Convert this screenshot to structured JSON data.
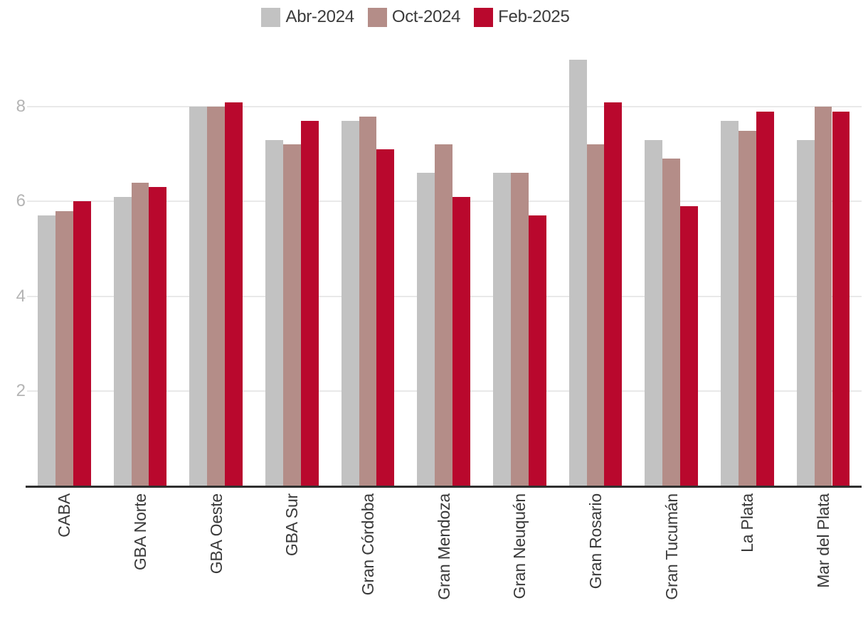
{
  "chart_data": {
    "type": "bar",
    "title": "",
    "xlabel": "",
    "ylabel": "",
    "categories": [
      "CABA",
      "GBA Norte",
      "GBA Oeste",
      "GBA Sur",
      "Gran Córdoba",
      "Gran Mendoza",
      "Gran Neuquén",
      "Gran Rosario",
      "Gran Tucumán",
      "La Plata",
      "Mar del Plata"
    ],
    "series": [
      {
        "name": "Abr-2024",
        "color": "#c2c2c2",
        "values": [
          5.7,
          6.1,
          8.0,
          7.3,
          7.7,
          6.6,
          6.6,
          9.0,
          7.3,
          7.7,
          7.3
        ]
      },
      {
        "name": "Oct-2024",
        "color": "#b48d88",
        "values": [
          5.8,
          6.4,
          8.0,
          7.2,
          7.8,
          7.2,
          6.6,
          7.2,
          6.9,
          7.5,
          8.0
        ]
      },
      {
        "name": "Feb-2025",
        "color": "#b9082d",
        "values": [
          6.0,
          6.3,
          8.1,
          7.7,
          7.1,
          6.1,
          5.7,
          8.1,
          5.9,
          7.9,
          7.9
        ]
      }
    ],
    "y_ticks": [
      2,
      4,
      6,
      8
    ],
    "ylim": [
      0,
      9.3
    ],
    "grid": true,
    "legend_position": "top-center",
    "style": {
      "grid_color": "#e9e9e9",
      "axis_color": "#2f2f2f",
      "y_tick_color": "#b4b4b4",
      "x_tick_color": "#3a3a3a",
      "legend_text_color": "#3c3c3c"
    }
  }
}
